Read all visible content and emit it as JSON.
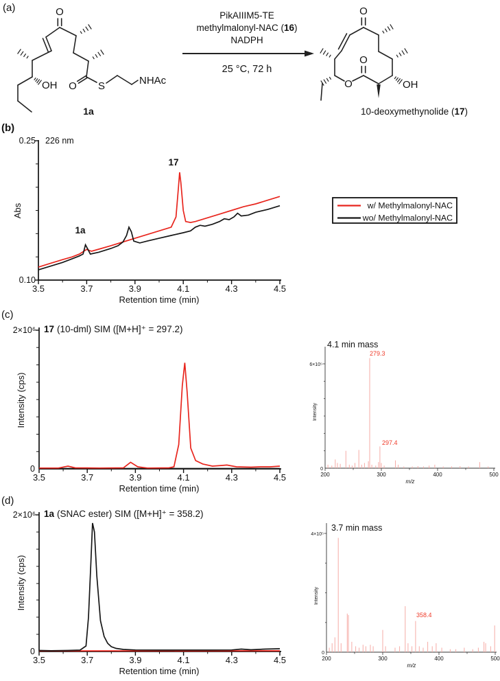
{
  "panel_a": {
    "label": "(a)",
    "reactant_label": "1a",
    "product_name_pre": "10-deoxymethynolide (",
    "product_name_num": "17",
    "product_name_post": ")",
    "conditions_line1": "PikAIIIM5-TE",
    "conditions_line2_pre": "methylmalonyl-NAC (",
    "conditions_line2_num": "16",
    "conditions_line2_post": ")",
    "conditions_line3": "NADPH",
    "conditions_below": "25 °C, 72 h",
    "atom_labels": {
      "o": "O",
      "oh": "OH",
      "s": "S",
      "nhac": "NHAc"
    }
  },
  "chart_data": [
    {
      "id": "hplc_b",
      "type": "line",
      "panel_label": "(b)",
      "annotation": "226 nm",
      "ylabel": "Abs",
      "xlabel": "Retention time (min)",
      "xlim": [
        3.5,
        4.5
      ],
      "ylim": [
        0.1,
        0.25
      ],
      "grid": false,
      "legend_position": "right",
      "ytick_labels": {
        "top": "0.25",
        "bottom": "0.10"
      },
      "xtick_labels": [
        "3.5",
        "3.7",
        "3.9",
        "4.1",
        "4.3",
        "4.5"
      ],
      "peak_labels": [
        {
          "text": "1a",
          "x": 3.69
        },
        {
          "text": "17",
          "x": 4.08
        }
      ],
      "series": [
        {
          "name": "w/ Methylmalonyl-NAC",
          "color": "#e8251d",
          "points": [
            [
              3.5,
              0.114
            ],
            [
              3.55,
              0.118
            ],
            [
              3.6,
              0.122
            ],
            [
              3.64,
              0.125
            ],
            [
              3.67,
              0.128
            ],
            [
              3.7,
              0.133
            ],
            [
              3.72,
              0.131
            ],
            [
              3.76,
              0.134
            ],
            [
              3.8,
              0.137
            ],
            [
              3.85,
              0.141
            ],
            [
              3.9,
              0.145
            ],
            [
              3.95,
              0.149
            ],
            [
              4.0,
              0.153
            ],
            [
              4.05,
              0.157
            ],
            [
              4.07,
              0.168
            ],
            [
              4.08,
              0.2
            ],
            [
              4.085,
              0.216
            ],
            [
              4.09,
              0.205
            ],
            [
              4.1,
              0.175
            ],
            [
              4.11,
              0.163
            ],
            [
              4.13,
              0.162
            ],
            [
              4.15,
              0.163
            ],
            [
              4.2,
              0.167
            ],
            [
              4.25,
              0.171
            ],
            [
              4.3,
              0.175
            ],
            [
              4.35,
              0.179
            ],
            [
              4.4,
              0.182
            ],
            [
              4.45,
              0.186
            ],
            [
              4.5,
              0.19
            ]
          ]
        },
        {
          "name": "wo/ Methylmalonyl-NAC",
          "color": "#161616",
          "points": [
            [
              3.5,
              0.111
            ],
            [
              3.55,
              0.115
            ],
            [
              3.6,
              0.119
            ],
            [
              3.64,
              0.123
            ],
            [
              3.67,
              0.126
            ],
            [
              3.685,
              0.128
            ],
            [
              3.695,
              0.138
            ],
            [
              3.705,
              0.133
            ],
            [
              3.715,
              0.128
            ],
            [
              3.75,
              0.13
            ],
            [
              3.8,
              0.134
            ],
            [
              3.83,
              0.137
            ],
            [
              3.85,
              0.141
            ],
            [
              3.865,
              0.148
            ],
            [
              3.875,
              0.157
            ],
            [
              3.885,
              0.152
            ],
            [
              3.895,
              0.142
            ],
            [
              3.92,
              0.14
            ],
            [
              3.95,
              0.142
            ],
            [
              4.0,
              0.145
            ],
            [
              4.05,
              0.148
            ],
            [
              4.1,
              0.151
            ],
            [
              4.13,
              0.153
            ],
            [
              4.15,
              0.157
            ],
            [
              4.17,
              0.159
            ],
            [
              4.19,
              0.158
            ],
            [
              4.22,
              0.16
            ],
            [
              4.25,
              0.163
            ],
            [
              4.27,
              0.166
            ],
            [
              4.29,
              0.165
            ],
            [
              4.31,
              0.168
            ],
            [
              4.325,
              0.172
            ],
            [
              4.34,
              0.169
            ],
            [
              4.37,
              0.17
            ],
            [
              4.4,
              0.173
            ],
            [
              4.45,
              0.176
            ],
            [
              4.5,
              0.18
            ]
          ]
        }
      ]
    },
    {
      "id": "sim_c",
      "type": "line",
      "panel_label": "(c)",
      "title_bold": "17",
      "title_rest": "(10-dml) SIM ([M+H]⁺ = 297.2)",
      "ylabel": "Intensity (cps)",
      "xlabel": "Retention time (min)",
      "xlim": [
        3.5,
        4.5
      ],
      "ylim": [
        0,
        2000000
      ],
      "grid": false,
      "ytick_labels": {
        "top": "2×10⁶",
        "bottom": "0"
      },
      "xtick_labels": [
        "3.5",
        "3.7",
        "3.9",
        "4.1",
        "4.3",
        "4.5"
      ],
      "series": [
        {
          "name": "w/ Methylmalonyl-NAC",
          "color": "#e8251d",
          "points": [
            [
              3.5,
              12000
            ],
            [
              3.58,
              12000
            ],
            [
              3.62,
              40000
            ],
            [
              3.65,
              15000
            ],
            [
              3.75,
              12000
            ],
            [
              3.85,
              15000
            ],
            [
              3.88,
              95000
            ],
            [
              3.91,
              30000
            ],
            [
              3.95,
              12000
            ],
            [
              4.04,
              15000
            ],
            [
              4.06,
              30000
            ],
            [
              4.08,
              350000
            ],
            [
              4.095,
              1200000
            ],
            [
              4.105,
              1530000
            ],
            [
              4.115,
              1100000
            ],
            [
              4.13,
              300000
            ],
            [
              4.15,
              120000
            ],
            [
              4.18,
              70000
            ],
            [
              4.22,
              40000
            ],
            [
              4.26,
              50000
            ],
            [
              4.28,
              55000
            ],
            [
              4.32,
              30000
            ],
            [
              4.38,
              25000
            ],
            [
              4.42,
              30000
            ],
            [
              4.46,
              30000
            ],
            [
              4.5,
              40000
            ]
          ]
        },
        {
          "name": "wo/ Methylmalonyl-NAC",
          "color": "#161616",
          "points": [
            [
              3.5,
              5000
            ],
            [
              4.5,
              5000
            ]
          ]
        }
      ]
    },
    {
      "id": "ms_4_1",
      "type": "stick",
      "title": "4.1 min mass",
      "ylabel": "Intensity",
      "xlabel": "m/z",
      "xlim": [
        200,
        500
      ],
      "ylim": [
        0,
        600000
      ],
      "ytick_labels": {
        "top": "6×10⁵",
        "bottom": "0"
      },
      "xtick_labels": [
        "200",
        "300",
        "400",
        "500"
      ],
      "color": "#f6aba6",
      "labeled_peaks": [
        {
          "mz": 279.3,
          "label": "279.3",
          "intensity": 633000
        },
        {
          "mz": 297.4,
          "label": "297.4",
          "intensity": 125000
        }
      ],
      "peaks": [
        [
          205,
          20000
        ],
        [
          212,
          15000
        ],
        [
          218,
          50000
        ],
        [
          222,
          30000
        ],
        [
          227,
          25000
        ],
        [
          237,
          100000
        ],
        [
          243,
          20000
        ],
        [
          248,
          15000
        ],
        [
          253,
          30000
        ],
        [
          260,
          105000
        ],
        [
          265,
          20000
        ],
        [
          270,
          30000
        ],
        [
          277,
          40000
        ],
        [
          279.3,
          633000
        ],
        [
          283,
          20000
        ],
        [
          290,
          15000
        ],
        [
          295,
          35000
        ],
        [
          297.4,
          125000
        ],
        [
          300,
          30000
        ],
        [
          305,
          15000
        ],
        [
          325,
          45000
        ],
        [
          330,
          20000
        ],
        [
          340,
          10000
        ],
        [
          355,
          10000
        ],
        [
          365,
          12000
        ],
        [
          375,
          10000
        ],
        [
          385,
          15000
        ],
        [
          395,
          20000
        ],
        [
          410,
          10000
        ],
        [
          425,
          10000
        ],
        [
          440,
          12000
        ],
        [
          455,
          10000
        ],
        [
          475,
          35000
        ],
        [
          490,
          10000
        ]
      ]
    },
    {
      "id": "sim_d",
      "type": "line",
      "panel_label": "(d)",
      "title_bold": "1a",
      "title_rest": "(SNAC ester) SIM ([M+H]⁺ = 358.2)",
      "ylabel": "Intensity (cps)",
      "xlabel": "Retention time (min)",
      "xlim": [
        3.5,
        4.5
      ],
      "ylim": [
        0,
        2000000
      ],
      "grid": false,
      "ytick_labels": {
        "top": "2×10⁶",
        "bottom": "0"
      },
      "xtick_labels": [
        "3.5",
        "3.7",
        "3.9",
        "4.1",
        "4.3",
        "4.5"
      ],
      "series": [
        {
          "name": "wo/ Methylmalonyl-NAC",
          "color": "#161616",
          "points": [
            [
              3.5,
              15000
            ],
            [
              3.55,
              12000
            ],
            [
              3.62,
              15000
            ],
            [
              3.67,
              20000
            ],
            [
              3.695,
              80000
            ],
            [
              3.705,
              500000
            ],
            [
              3.715,
              1300000
            ],
            [
              3.722,
              1880000
            ],
            [
              3.73,
              1750000
            ],
            [
              3.74,
              1100000
            ],
            [
              3.755,
              450000
            ],
            [
              3.77,
              220000
            ],
            [
              3.785,
              120000
            ],
            [
              3.8,
              70000
            ],
            [
              3.82,
              45000
            ],
            [
              3.85,
              30000
            ],
            [
              3.9,
              22000
            ],
            [
              4.0,
              20000
            ],
            [
              4.1,
              20000
            ],
            [
              4.2,
              20000
            ],
            [
              4.3,
              22000
            ],
            [
              4.34,
              35000
            ],
            [
              4.38,
              25000
            ],
            [
              4.44,
              35000
            ],
            [
              4.5,
              40000
            ]
          ]
        },
        {
          "name": "w/ Methylmalonyl-NAC",
          "color": "#e8251d",
          "points": [
            [
              3.5,
              8000
            ],
            [
              4.5,
              10000
            ]
          ]
        }
      ]
    },
    {
      "id": "ms_3_7",
      "type": "stick",
      "title": "3.7 min mass",
      "ylabel": "Intensity",
      "xlabel": "m/z",
      "xlim": [
        200,
        500
      ],
      "ylim": [
        0,
        400000
      ],
      "ytick_labels": {
        "top": "4×10⁵",
        "bottom": "0"
      },
      "xtick_labels": [
        "200",
        "300",
        "400",
        "500"
      ],
      "color": "#f6aba6",
      "labeled_peaks": [
        {
          "mz": 358.4,
          "label": "358.4",
          "intensity": 105000
        }
      ],
      "peaks": [
        [
          205,
          15000
        ],
        [
          210,
          30000
        ],
        [
          215,
          50000
        ],
        [
          221,
          385000
        ],
        [
          226,
          30000
        ],
        [
          237,
          130000
        ],
        [
          239,
          125000
        ],
        [
          245,
          35000
        ],
        [
          252,
          20000
        ],
        [
          258,
          15000
        ],
        [
          265,
          25000
        ],
        [
          270,
          20000
        ],
        [
          278,
          25000
        ],
        [
          283,
          20000
        ],
        [
          300,
          75000
        ],
        [
          305,
          20000
        ],
        [
          322,
          15000
        ],
        [
          330,
          20000
        ],
        [
          340,
          155000
        ],
        [
          345,
          30000
        ],
        [
          352,
          20000
        ],
        [
          358.4,
          105000
        ],
        [
          365,
          20000
        ],
        [
          372,
          15000
        ],
        [
          380,
          35000
        ],
        [
          388,
          20000
        ],
        [
          395,
          30000
        ],
        [
          405,
          15000
        ],
        [
          420,
          10000
        ],
        [
          430,
          10000
        ],
        [
          445,
          15000
        ],
        [
          460,
          10000
        ],
        [
          470,
          15000
        ],
        [
          480,
          35000
        ],
        [
          483,
          30000
        ],
        [
          492,
          20000
        ],
        [
          499,
          90000
        ]
      ]
    }
  ]
}
